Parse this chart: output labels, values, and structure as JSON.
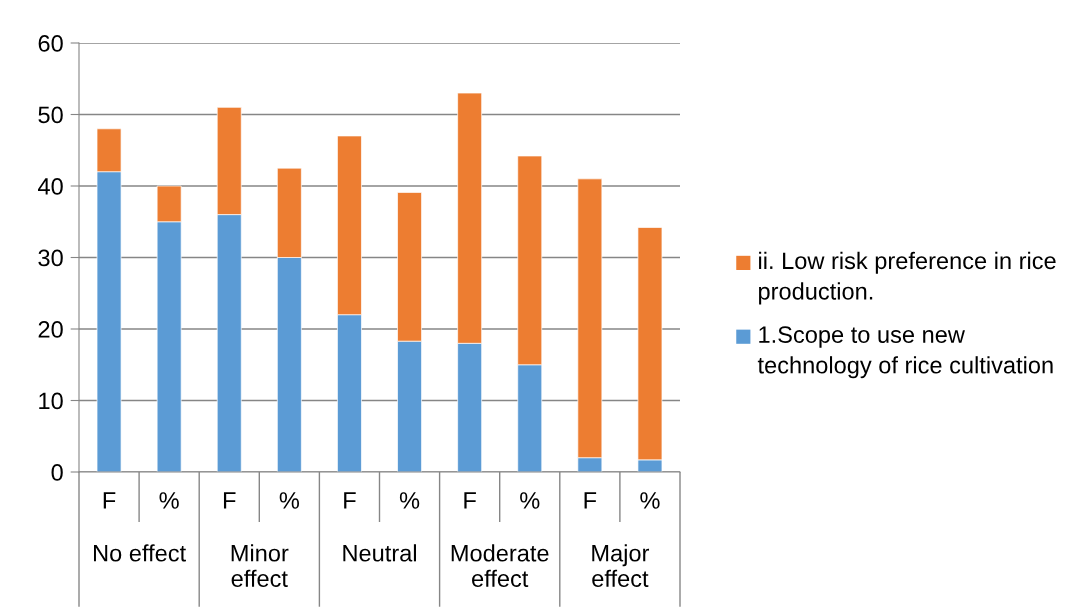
{
  "chart_data": {
    "type": "bar",
    "stacked": true,
    "categories": [
      "F",
      "%",
      "F",
      "%",
      "F",
      "%",
      "F",
      "%",
      "F",
      "%"
    ],
    "series": [
      {
        "name": "1.Scope to use new technology of rice cultivation",
        "color": "#5b9bd5",
        "values": [
          42,
          35,
          36,
          30,
          22,
          18.3,
          18,
          15,
          2,
          1.7
        ]
      },
      {
        "name": "ii. Low risk preference in rice production.",
        "color": "#ed7d31",
        "values": [
          6,
          5,
          15,
          12.5,
          25,
          20.8,
          35,
          29.2,
          39,
          32.5
        ]
      }
    ],
    "annotations": [
      "No effect",
      "Minor effect",
      "Neutral",
      "Moderate effect",
      "Major effect"
    ],
    "ylim": [
      0,
      60
    ],
    "yticks": [
      0,
      10,
      20,
      30,
      40,
      50,
      60
    ],
    "grid": "y",
    "legend": "right"
  }
}
